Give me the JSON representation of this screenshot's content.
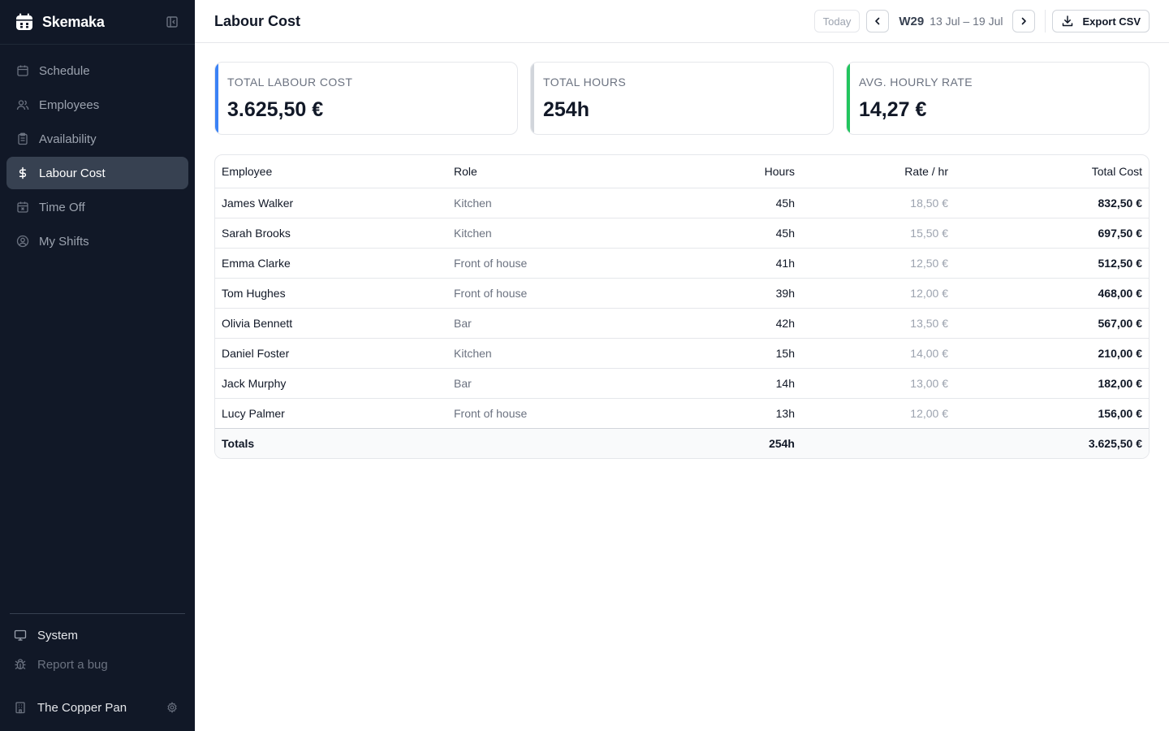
{
  "app": {
    "name": "Skemaka"
  },
  "sidebar": {
    "items": [
      {
        "label": "Schedule",
        "icon": "calendar-icon",
        "active": false
      },
      {
        "label": "Employees",
        "icon": "users-icon",
        "active": false
      },
      {
        "label": "Availability",
        "icon": "clipboard-icon",
        "active": false
      },
      {
        "label": "Labour Cost",
        "icon": "dollar-icon",
        "active": true
      },
      {
        "label": "Time Off",
        "icon": "calendar-x-icon",
        "active": false
      },
      {
        "label": "My Shifts",
        "icon": "user-circle-icon",
        "active": false
      }
    ],
    "system_label": "System",
    "bug_label": "Report a bug",
    "org_name": "The Copper Pan"
  },
  "header": {
    "title": "Labour Cost",
    "today_label": "Today",
    "week_number": "W29",
    "week_range": "13 Jul – 19 Jul",
    "export_label": "Export CSV"
  },
  "stats": [
    {
      "label": "Total Labour Cost",
      "value": "3.625,50 €",
      "accent": "#3b82f6"
    },
    {
      "label": "Total Hours",
      "value": "254h",
      "accent": "#d1d5db"
    },
    {
      "label": "Avg. Hourly Rate",
      "value": "14,27 €",
      "accent": "#22c55e"
    }
  ],
  "table": {
    "headers": {
      "employee": "Employee",
      "role": "Role",
      "hours": "Hours",
      "rate": "Rate / hr",
      "total": "Total Cost"
    },
    "rows": [
      {
        "employee": "James Walker",
        "role": "Kitchen",
        "hours": "45h",
        "rate": "18,50 €",
        "total": "832,50 €"
      },
      {
        "employee": "Sarah Brooks",
        "role": "Kitchen",
        "hours": "45h",
        "rate": "15,50 €",
        "total": "697,50 €"
      },
      {
        "employee": "Emma Clarke",
        "role": "Front of house",
        "hours": "41h",
        "rate": "12,50 €",
        "total": "512,50 €"
      },
      {
        "employee": "Tom Hughes",
        "role": "Front of house",
        "hours": "39h",
        "rate": "12,00 €",
        "total": "468,00 €"
      },
      {
        "employee": "Olivia Bennett",
        "role": "Bar",
        "hours": "42h",
        "rate": "13,50 €",
        "total": "567,00 €"
      },
      {
        "employee": "Daniel Foster",
        "role": "Kitchen",
        "hours": "15h",
        "rate": "14,00 €",
        "total": "210,00 €"
      },
      {
        "employee": "Jack Murphy",
        "role": "Bar",
        "hours": "14h",
        "rate": "13,00 €",
        "total": "182,00 €"
      },
      {
        "employee": "Lucy Palmer",
        "role": "Front of house",
        "hours": "13h",
        "rate": "12,00 €",
        "total": "156,00 €"
      }
    ],
    "totals": {
      "label": "Totals",
      "hours": "254h",
      "total": "3.625,50 €"
    }
  }
}
